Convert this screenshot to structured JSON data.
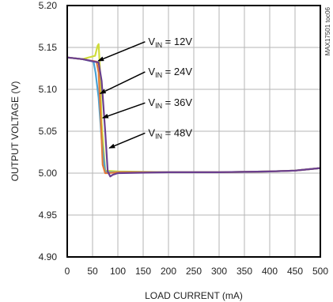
{
  "chart_data": {
    "type": "line",
    "title": "",
    "xlabel": "LOAD CURRENT (mA)",
    "ylabel": "OUTPUT VOLTAGE (V)",
    "xlim": [
      0,
      500
    ],
    "ylim": [
      4.9,
      5.2
    ],
    "x_ticks": [
      "0",
      "50",
      "100",
      "150",
      "200",
      "250",
      "300",
      "350",
      "400",
      "450",
      "500"
    ],
    "y_ticks": [
      "5.20",
      "5.15",
      "5.10",
      "5.05",
      "5.00",
      "4.95",
      "4.90"
    ],
    "grid": true,
    "watermark": "MAX17501 toc06",
    "series": [
      {
        "name": "VIN = 12V",
        "color": "#cfdc3c",
        "x": [
          0,
          30,
          55,
          60,
          62,
          65,
          68,
          75,
          100,
          200,
          300,
          400,
          450,
          500
        ],
        "y": [
          5.138,
          5.136,
          5.14,
          5.152,
          5.154,
          5.12,
          5.06,
          5.003,
          5.002,
          5.001,
          5.001,
          5.002,
          5.003,
          5.006
        ]
      },
      {
        "name": "VIN = 24V",
        "color": "#4aa3d6",
        "x": [
          0,
          30,
          52,
          56,
          62,
          68,
          75,
          100,
          200,
          300,
          400,
          450,
          500
        ],
        "y": [
          5.138,
          5.136,
          5.133,
          5.12,
          5.09,
          5.04,
          5.001,
          5.001,
          5.001,
          5.001,
          5.002,
          5.003,
          5.006
        ]
      },
      {
        "name": "VIN = 36V",
        "color": "#e07a3a",
        "x": [
          0,
          30,
          58,
          62,
          66,
          70,
          75,
          80,
          100,
          200,
          300,
          400,
          450,
          500
        ],
        "y": [
          5.138,
          5.136,
          5.133,
          5.12,
          5.07,
          5.01,
          5.0,
          5.0,
          5.001,
          5.001,
          5.001,
          5.002,
          5.003,
          5.006
        ]
      },
      {
        "name": "VIN = 48V",
        "color": "#6a3f8f",
        "x": [
          0,
          30,
          62,
          68,
          75,
          80,
          85,
          90,
          100,
          200,
          300,
          400,
          450,
          500
        ],
        "y": [
          5.138,
          5.136,
          5.132,
          5.11,
          5.05,
          5.002,
          4.996,
          4.998,
          5.0,
          5.001,
          5.001,
          5.002,
          5.003,
          5.006
        ]
      }
    ],
    "annotations": [
      {
        "main": "V",
        "sub": "IN",
        "rest": " = 12V",
        "ax": 58,
        "ay": 5.134,
        "tx": 160,
        "ty": 5.153
      },
      {
        "main": "V",
        "sub": "IN",
        "rest": " = 24V",
        "ax": 62,
        "ay": 5.095,
        "tx": 160,
        "ty": 5.117
      },
      {
        "main": "V",
        "sub": "IN",
        "rest": " = 36V",
        "ax": 67,
        "ay": 5.066,
        "tx": 160,
        "ty": 5.08
      },
      {
        "main": "V",
        "sub": "IN",
        "rest": " = 48V",
        "ax": 80,
        "ay": 5.03,
        "tx": 160,
        "ty": 5.044
      }
    ]
  }
}
